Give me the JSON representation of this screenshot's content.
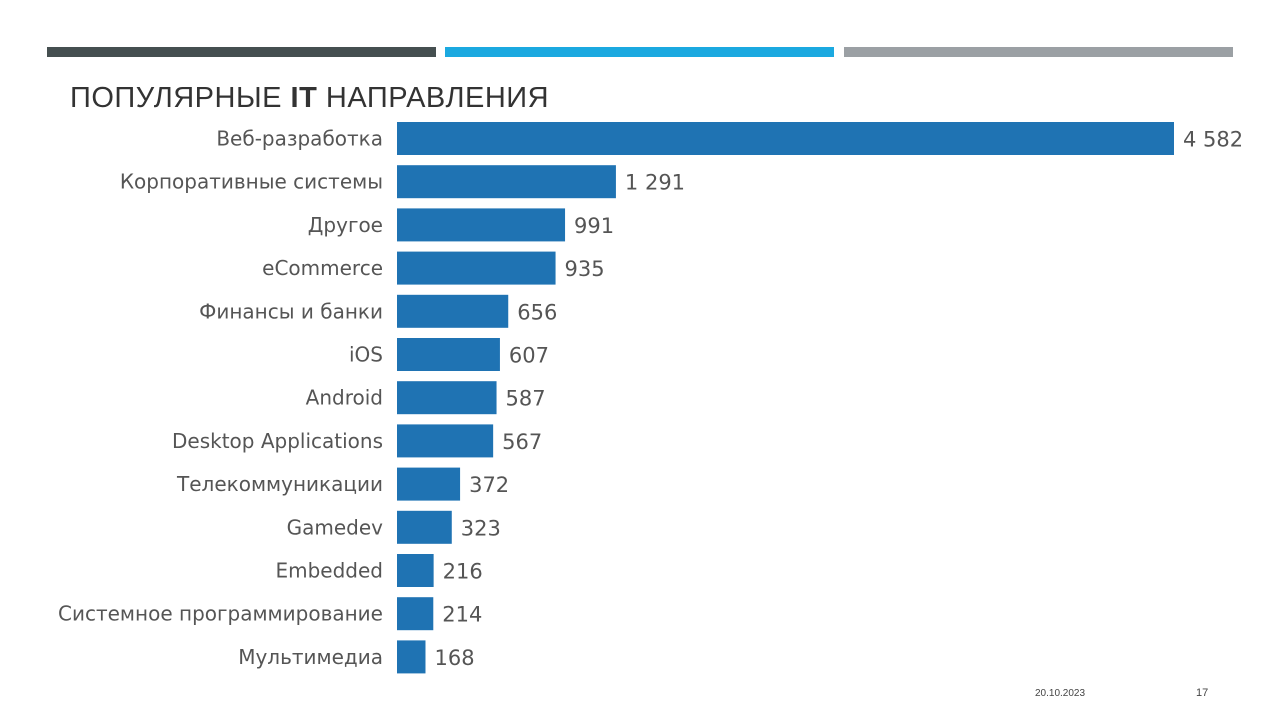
{
  "header": {
    "title_part1": "ПОПУЛЯРНЫЕ ",
    "title_bold": "IT",
    "title_part2": " НАПРАВЛЕНИЯ",
    "bar_colors": [
      "#454f50",
      "#1ba9e0",
      "#9ba0a4"
    ]
  },
  "chart_data": {
    "type": "bar",
    "orientation": "horizontal",
    "categories": [
      "Веб-разработка",
      "Корпоративные системы",
      "Другое",
      "eCommerce",
      "Финансы и банки",
      "iOS",
      "Android",
      "Desktop Applications",
      "Телекоммуникации",
      "Gamedev",
      "Embedded",
      "Системное программирование",
      "Мультимедиа"
    ],
    "values": [
      4582,
      1291,
      991,
      935,
      656,
      607,
      587,
      567,
      372,
      323,
      216,
      214,
      168
    ],
    "value_labels": [
      "4 582",
      "1 291",
      "991",
      "935",
      "656",
      "607",
      "587",
      "567",
      "372",
      "323",
      "216",
      "214",
      "168"
    ],
    "title": "",
    "xlabel": "",
    "ylabel": "",
    "grid": false,
    "bar_color": "#1f73b3"
  },
  "footer": {
    "date": "20.10.2023",
    "page": "17"
  }
}
